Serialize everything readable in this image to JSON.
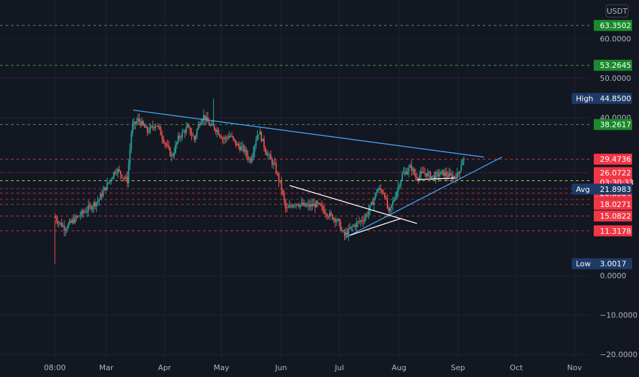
{
  "currency": "USDT",
  "chart_data": {
    "type": "candlestick",
    "x_ticks": [
      "08:00",
      "Mar",
      "Apr",
      "May",
      "Jun",
      "Jul",
      "Aug",
      "Sep",
      "Oct",
      "Nov"
    ],
    "y_ticks": [
      60.0,
      50.0,
      40.0,
      0.0,
      -10.0,
      -20.0
    ],
    "y_tick_labels": [
      "60.0000",
      "50.0000",
      "40.0000",
      "0.0000",
      "−10.0000",
      "−20.0000"
    ],
    "ylim": [
      -21,
      67
    ],
    "current_price": {
      "value": 26.0722,
      "label": "26.0722",
      "countdown": "03:30:33"
    },
    "high": {
      "label": "High",
      "value": 44.85,
      "text": "44.8500"
    },
    "low": {
      "label": "Low",
      "value": 3.0017,
      "text": "3.0017"
    },
    "avg": {
      "label": "Avg",
      "value": 21.8983,
      "text": "21.8983"
    },
    "levels": [
      {
        "value": 63.3502,
        "text": "63.3502",
        "color": "#1b8a2c",
        "line": "#4caf50"
      },
      {
        "value": 53.2645,
        "text": "53.2645",
        "color": "#1b8a2c",
        "line": "#4caf50"
      },
      {
        "value": 38.2617,
        "text": "38.2617",
        "color": "#1b8a2c",
        "line": "#4caf50"
      },
      {
        "value": 29.4736,
        "text": "29.4736",
        "color": "#f23645",
        "line": "#f23645"
      },
      {
        "value": 24.0217,
        "text": "24.0217",
        "color": "#ffeb3b",
        "line": "#ffeb3b",
        "text_color": "#131722"
      },
      {
        "value": 20.8584,
        "text": "20.8584",
        "color": "#f23645",
        "line": "#f23645"
      },
      {
        "value": 18.0271,
        "text": "18.0271",
        "color": "#f23645",
        "line": "#f23645"
      },
      {
        "value": 15.0822,
        "text": "15.0822",
        "color": "#f23645",
        "line": "#f23645"
      },
      {
        "value": 11.3178,
        "text": "11.3178",
        "color": "#f23645",
        "line": "#f23645"
      }
    ],
    "extra_dashed_levels": [
      22.0,
      19.3
    ],
    "price_path": [
      [
        0.0,
        15.0
      ],
      [
        0.5,
        12.0
      ],
      [
        1.0,
        14.5
      ],
      [
        2.0,
        19.0
      ],
      [
        2.8,
        27.0
      ],
      [
        3.3,
        24.0
      ],
      [
        3.5,
        37.5
      ],
      [
        3.8,
        39.5
      ],
      [
        4.2,
        36.5
      ],
      [
        4.6,
        38.5
      ],
      [
        5.0,
        33.5
      ],
      [
        5.3,
        30.0
      ],
      [
        5.6,
        35.0
      ],
      [
        6.0,
        37.5
      ],
      [
        6.3,
        34.5
      ],
      [
        6.5,
        38.5
      ],
      [
        6.7,
        40.5
      ],
      [
        7.0,
        38.0
      ],
      [
        7.3,
        37.0
      ],
      [
        7.6,
        34.5
      ],
      [
        7.9,
        35.5
      ],
      [
        8.2,
        33.0
      ],
      [
        8.5,
        32.0
      ],
      [
        8.8,
        29.0
      ],
      [
        9.1,
        35.5
      ],
      [
        9.2,
        36.5
      ],
      [
        9.5,
        31.5
      ],
      [
        9.9,
        27.5
      ],
      [
        10.2,
        22.0
      ],
      [
        10.4,
        16.5
      ],
      [
        10.8,
        18.5
      ],
      [
        11.3,
        17.5
      ],
      [
        11.8,
        18.0
      ],
      [
        12.3,
        15.5
      ],
      [
        12.7,
        14.0
      ],
      [
        13.0,
        10.0
      ],
      [
        13.4,
        12.5
      ],
      [
        13.9,
        14.5
      ],
      [
        14.2,
        17.5
      ],
      [
        14.5,
        22.0
      ],
      [
        14.8,
        21.0
      ],
      [
        15.0,
        15.5
      ],
      [
        15.3,
        20.5
      ],
      [
        15.6,
        25.5
      ],
      [
        16.0,
        27.5
      ],
      [
        16.2,
        25.0
      ],
      [
        16.6,
        26.0
      ],
      [
        17.0,
        25.0
      ],
      [
        17.4,
        26.0
      ],
      [
        17.8,
        25.0
      ],
      [
        18.1,
        25.5
      ],
      [
        18.3,
        29.5
      ]
    ],
    "high_point": [
      7.1,
      44.85
    ],
    "low_point": [
      0.0,
      3.0017
    ],
    "trendlines": [
      {
        "color": "#42a5f5",
        "from": [
          3.5,
          41.9
        ],
        "to": [
          19.2,
          30.0
        ]
      },
      {
        "color": "#42a5f5",
        "from": [
          13.0,
          9.6
        ],
        "to": [
          20.0,
          30.0
        ]
      },
      {
        "color": "#ffffff",
        "from": [
          10.5,
          22.8
        ],
        "to": [
          16.2,
          13.2
        ]
      },
      {
        "color": "#ffffff",
        "from": [
          13.2,
          10.2
        ],
        "to": [
          15.5,
          14.5
        ]
      },
      {
        "color": "#ffffff",
        "from": [
          16.2,
          24.3
        ],
        "to": [
          17.9,
          24.7
        ]
      }
    ]
  }
}
